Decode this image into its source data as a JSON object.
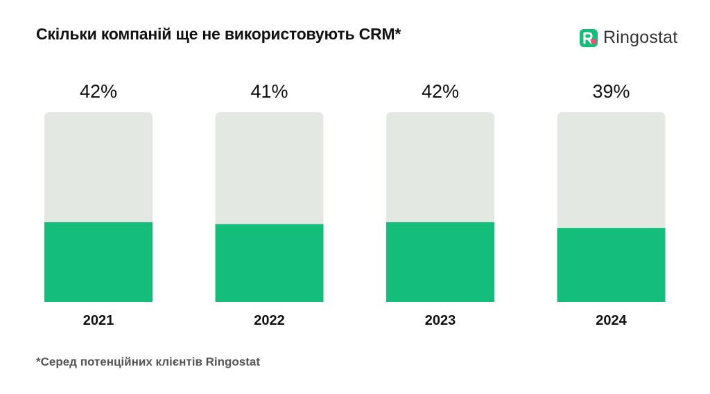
{
  "title": "Скільки компаній ще не використовують CRM*",
  "logo": {
    "text": "Ringostat",
    "icon": "ringostat-logo-icon"
  },
  "footnote": "*Серед потенційних клієнтів Ringostat",
  "colors": {
    "bar_fill": "#14BE7A",
    "bar_track": "#E4E8E3",
    "logo_green": "#14BE7A",
    "logo_red": "#F0506E"
  },
  "chart_data": {
    "type": "bar",
    "categories": [
      "2021",
      "2022",
      "2023",
      "2024"
    ],
    "values": [
      42,
      41,
      42,
      39
    ],
    "value_labels": [
      "42%",
      "41%",
      "42%",
      "39%"
    ],
    "title": "Скільки компаній ще не використовують CRM*",
    "xlabel": "",
    "ylabel": "",
    "ylim": [
      0,
      100
    ],
    "grid": false
  }
}
